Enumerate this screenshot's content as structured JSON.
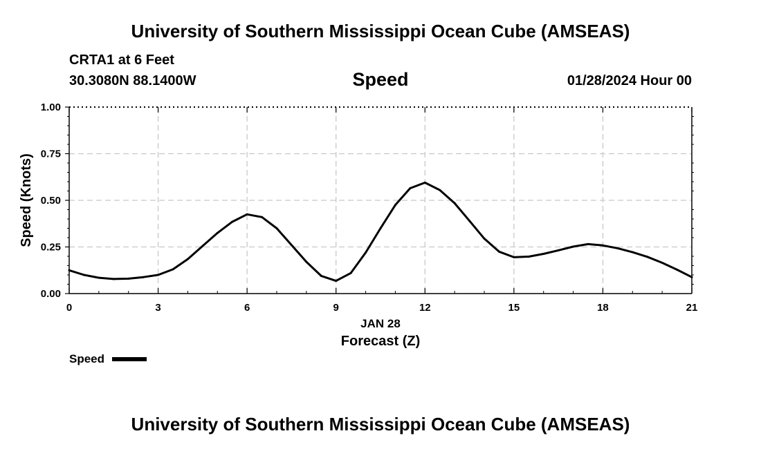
{
  "header": {
    "title": "University of Southern Mississippi Ocean Cube (AMSEAS)",
    "station": "CRTA1 at 6 Feet",
    "coordinates": "30.3080N  88.1400W",
    "chart_title": "Speed",
    "run_time": "01/28/2024 Hour 00"
  },
  "footer": {
    "title": "University of Southern Mississippi Ocean Cube (AMSEAS)"
  },
  "legend": {
    "label": "Speed"
  },
  "colors": {
    "line": "#000000",
    "grid": "#c8c8c8",
    "background": "#ffffff"
  },
  "chart_data": {
    "type": "line",
    "title": "Speed",
    "xlabel": "Forecast (Z)",
    "xlabel_date": "JAN 28",
    "ylabel": "Speed (Knots)",
    "xlim": [
      0,
      21
    ],
    "ylim": [
      0,
      1
    ],
    "x_ticks": [
      0,
      3,
      6,
      9,
      12,
      15,
      18,
      21
    ],
    "x_tick_labels": [
      "0",
      "3",
      "6",
      "9",
      "12",
      "15",
      "18",
      "21"
    ],
    "y_ticks": [
      0,
      0.25,
      0.5,
      0.75,
      1.0
    ],
    "y_tick_labels": [
      "0.00",
      "0.25",
      "0.50",
      "0.75",
      "1.00"
    ],
    "grid": true,
    "legend_position": "bottom-left",
    "series": [
      {
        "name": "Speed",
        "x": [
          0,
          0.5,
          1,
          1.5,
          2,
          2.5,
          3,
          3.5,
          4,
          4.5,
          5,
          5.5,
          6,
          6.5,
          7,
          7.5,
          8,
          8.5,
          9,
          9.5,
          10,
          10.5,
          11,
          11.5,
          12,
          12.5,
          13,
          13.5,
          14,
          14.5,
          15,
          15.5,
          16,
          16.5,
          17,
          17.5,
          18,
          18.5,
          19,
          19.5,
          20,
          20.5,
          21
        ],
        "values": [
          0.125,
          0.1,
          0.085,
          0.078,
          0.08,
          0.088,
          0.1,
          0.13,
          0.185,
          0.255,
          0.325,
          0.385,
          0.425,
          0.41,
          0.35,
          0.26,
          0.17,
          0.095,
          0.068,
          0.11,
          0.22,
          0.35,
          0.475,
          0.565,
          0.595,
          0.555,
          0.485,
          0.39,
          0.295,
          0.225,
          0.195,
          0.198,
          0.213,
          0.232,
          0.252,
          0.265,
          0.258,
          0.243,
          0.222,
          0.197,
          0.165,
          0.128,
          0.088
        ]
      }
    ]
  }
}
